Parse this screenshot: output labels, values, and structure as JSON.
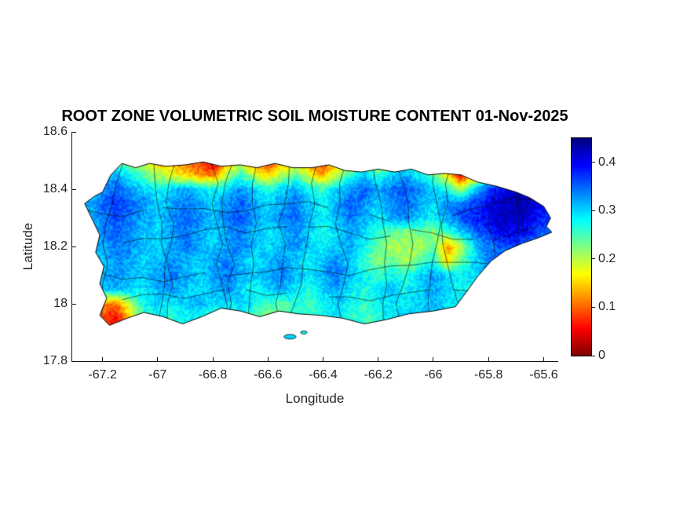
{
  "figure": {
    "title": "ROOT ZONE VOLUMETRIC SOIL MOISTURE CONTENT 01-Nov-2025",
    "xlabel": "Longitude",
    "ylabel": "Latitude",
    "background": "#ffffff",
    "text_color": "#262626"
  },
  "axes": {
    "xlim": [
      -67.31,
      -65.55
    ],
    "ylim": [
      17.8,
      18.6
    ],
    "x_ticks": {
      "values": [
        -67.2,
        -67,
        -66.8,
        -66.6,
        -66.4,
        -66.2,
        -66,
        -65.8,
        -65.6
      ],
      "labels": [
        "-67.2",
        "-67",
        "-66.8",
        "-66.6",
        "-66.4",
        "-66.2",
        "-66",
        "-65.8",
        "-65.6"
      ]
    },
    "y_ticks": {
      "values": [
        17.8,
        18,
        18.2,
        18.4,
        18.6
      ],
      "labels": [
        "17.8",
        "18",
        "18.2",
        "18.4",
        "18.6"
      ]
    }
  },
  "colorbar": {
    "min": 0,
    "max": 0.45,
    "colormap": "jet reversed (red = dry, dark blue = wet)",
    "ticks": {
      "values": [
        0,
        0.1,
        0.2,
        0.3,
        0.4
      ],
      "labels": [
        "0",
        "0.1",
        "0.2",
        "0.3",
        "0.4"
      ]
    }
  },
  "chart_data": {
    "type": "heatmap",
    "region": "Puerto Rico",
    "quantity": "Root zone volumetric soil moisture content",
    "date": "01-Nov-2025",
    "value_range": [
      0,
      0.45
    ],
    "grid": {
      "lon_start": -67.25,
      "lon_step": 0.05,
      "lat_start": 18.5,
      "lat_step": -0.05,
      "values": [
        [
          null,
          null,
          0.25,
          0.2,
          0.18,
          0.15,
          0.12,
          0.1,
          0.08,
          0.05,
          0.12,
          0.16,
          0.1,
          0.07,
          0.12,
          0.16,
          0.1,
          0.07,
          0.14,
          0.18,
          0.2,
          0.17,
          0.22,
          0.26,
          0.22,
          0.18,
          null,
          null,
          null,
          null,
          null,
          null,
          null,
          null,
          null
        ],
        [
          null,
          0.3,
          0.32,
          0.28,
          0.24,
          0.2,
          0.18,
          0.15,
          0.12,
          0.1,
          0.2,
          0.26,
          0.2,
          0.14,
          0.2,
          0.24,
          0.18,
          0.13,
          0.2,
          0.26,
          0.3,
          0.26,
          0.3,
          0.32,
          0.28,
          0.24,
          0.16,
          0.05,
          0.14,
          0.26,
          0.32,
          0.35,
          null,
          null,
          null
        ],
        [
          0.3,
          0.33,
          0.35,
          0.32,
          0.3,
          0.28,
          0.3,
          0.32,
          0.3,
          0.28,
          0.3,
          0.33,
          0.3,
          0.27,
          0.3,
          0.32,
          0.28,
          0.26,
          0.3,
          0.33,
          0.35,
          0.32,
          0.34,
          0.36,
          0.33,
          0.3,
          0.28,
          0.2,
          0.3,
          0.36,
          0.4,
          0.42,
          0.4,
          0.36,
          null
        ],
        [
          0.32,
          0.35,
          0.37,
          0.35,
          0.33,
          0.3,
          0.32,
          0.34,
          0.32,
          0.3,
          0.33,
          0.35,
          0.32,
          0.3,
          0.32,
          0.34,
          0.3,
          0.28,
          0.32,
          0.35,
          0.33,
          0.3,
          0.33,
          0.35,
          0.32,
          0.3,
          0.33,
          0.35,
          0.37,
          0.4,
          0.42,
          0.43,
          0.42,
          0.4,
          0.38
        ],
        [
          0.3,
          0.34,
          0.36,
          0.34,
          0.32,
          0.3,
          0.33,
          0.35,
          0.33,
          0.31,
          0.34,
          0.36,
          0.33,
          0.3,
          0.33,
          0.35,
          0.31,
          0.28,
          0.31,
          0.34,
          0.32,
          0.29,
          0.32,
          0.34,
          0.3,
          0.28,
          0.32,
          0.36,
          0.38,
          0.4,
          0.42,
          0.42,
          0.4,
          0.38,
          0.36
        ],
        [
          0.28,
          0.33,
          0.35,
          0.33,
          0.31,
          0.3,
          0.32,
          0.34,
          0.32,
          0.3,
          0.32,
          0.34,
          0.31,
          0.29,
          0.31,
          0.33,
          0.3,
          0.27,
          0.3,
          0.32,
          0.3,
          0.26,
          0.24,
          0.22,
          0.24,
          0.22,
          0.26,
          0.3,
          0.34,
          0.38,
          0.4,
          0.4,
          0.38,
          0.36,
          0.34
        ],
        [
          null,
          0.32,
          0.34,
          0.33,
          0.31,
          0.3,
          0.32,
          0.34,
          0.32,
          0.3,
          0.32,
          0.34,
          0.31,
          0.29,
          0.31,
          0.33,
          0.3,
          0.28,
          0.3,
          0.32,
          0.28,
          0.24,
          0.2,
          0.22,
          0.2,
          0.24,
          0.12,
          0.2,
          0.3,
          0.34,
          0.36,
          0.36,
          0.34,
          null,
          null
        ],
        [
          null,
          0.3,
          0.33,
          0.32,
          0.3,
          0.31,
          0.33,
          0.31,
          0.3,
          0.32,
          0.34,
          0.31,
          0.29,
          0.31,
          0.33,
          0.3,
          0.28,
          0.31,
          0.33,
          0.3,
          0.26,
          0.22,
          0.24,
          0.2,
          0.24,
          0.28,
          0.15,
          0.24,
          0.3,
          0.34,
          0.34,
          null,
          null,
          null,
          null
        ],
        [
          null,
          0.31,
          0.33,
          0.31,
          0.3,
          0.32,
          0.34,
          0.32,
          0.3,
          0.32,
          0.34,
          0.32,
          0.3,
          0.32,
          0.34,
          0.31,
          0.29,
          0.32,
          0.34,
          0.31,
          0.28,
          0.26,
          0.28,
          0.26,
          0.3,
          0.32,
          0.3,
          0.28,
          0.3,
          0.3,
          null,
          null,
          null,
          null,
          null
        ],
        [
          null,
          0.3,
          0.32,
          0.3,
          0.29,
          0.31,
          0.33,
          0.31,
          0.29,
          0.31,
          0.33,
          0.3,
          0.28,
          0.3,
          0.32,
          0.29,
          0.27,
          0.3,
          0.32,
          0.29,
          0.27,
          0.29,
          0.31,
          0.28,
          0.3,
          0.32,
          0.3,
          0.28,
          null,
          null,
          null,
          null,
          null,
          null,
          null
        ],
        [
          null,
          0.12,
          0.1,
          0.2,
          0.28,
          0.3,
          0.28,
          0.3,
          0.32,
          0.3,
          0.28,
          0.3,
          0.28,
          0.26,
          0.24,
          0.27,
          0.25,
          0.28,
          0.3,
          0.28,
          0.26,
          0.28,
          0.3,
          0.28,
          0.3,
          0.31,
          0.29,
          null,
          null,
          null,
          null,
          null,
          null,
          null,
          null
        ],
        [
          null,
          0.08,
          0.06,
          0.15,
          0.25,
          0.28,
          0.26,
          0.28,
          0.27,
          0.25,
          0.28,
          0.26,
          0.24,
          0.2,
          0.24,
          0.26,
          0.25,
          0.27,
          0.29,
          0.27,
          0.25,
          0.27,
          0.29,
          0.3,
          null,
          null,
          null,
          null,
          null,
          null,
          null,
          null,
          null,
          null,
          null
        ],
        [
          null,
          null,
          null,
          null,
          null,
          null,
          null,
          null,
          null,
          null,
          null,
          null,
          null,
          null,
          null,
          null,
          null,
          null,
          null,
          null,
          null,
          null,
          null,
          null,
          null,
          null,
          null,
          null,
          null,
          null,
          null,
          null,
          null,
          null,
          null
        ]
      ]
    },
    "island_outline": [
      [
        -67.19,
        18.41
      ],
      [
        -67.17,
        18.45
      ],
      [
        -67.13,
        18.49
      ],
      [
        -67.08,
        18.475
      ],
      [
        -67.03,
        18.49
      ],
      [
        -66.97,
        18.48
      ],
      [
        -66.9,
        18.485
      ],
      [
        -66.835,
        18.495
      ],
      [
        -66.77,
        18.48
      ],
      [
        -66.7,
        18.485
      ],
      [
        -66.64,
        18.475
      ],
      [
        -66.575,
        18.49
      ],
      [
        -66.51,
        18.475
      ],
      [
        -66.44,
        18.475
      ],
      [
        -66.38,
        18.485
      ],
      [
        -66.32,
        18.465
      ],
      [
        -66.26,
        18.46
      ],
      [
        -66.2,
        18.47
      ],
      [
        -66.14,
        18.46
      ],
      [
        -66.08,
        18.47
      ],
      [
        -66.02,
        18.45
      ],
      [
        -65.96,
        18.455
      ],
      [
        -65.9,
        18.45
      ],
      [
        -65.84,
        18.425
      ],
      [
        -65.77,
        18.41
      ],
      [
        -65.7,
        18.39
      ],
      [
        -65.65,
        18.37
      ],
      [
        -65.6,
        18.34
      ],
      [
        -65.575,
        18.3
      ],
      [
        -65.59,
        18.27
      ],
      [
        -65.57,
        18.25
      ],
      [
        -65.62,
        18.23
      ],
      [
        -65.68,
        18.21
      ],
      [
        -65.74,
        18.185
      ],
      [
        -65.79,
        18.15
      ],
      [
        -65.84,
        18.095
      ],
      [
        -65.885,
        18.035
      ],
      [
        -65.92,
        17.99
      ],
      [
        -66.0,
        17.975
      ],
      [
        -66.09,
        17.965
      ],
      [
        -66.17,
        17.945
      ],
      [
        -66.25,
        17.93
      ],
      [
        -66.33,
        17.95
      ],
      [
        -66.41,
        17.96
      ],
      [
        -66.49,
        17.965
      ],
      [
        -66.56,
        17.975
      ],
      [
        -66.63,
        17.955
      ],
      [
        -66.7,
        17.975
      ],
      [
        -66.77,
        17.985
      ],
      [
        -66.84,
        17.955
      ],
      [
        -66.91,
        17.93
      ],
      [
        -66.98,
        17.955
      ],
      [
        -67.05,
        17.97
      ],
      [
        -67.11,
        17.95
      ],
      [
        -67.175,
        17.925
      ],
      [
        -67.21,
        17.96
      ],
      [
        -67.185,
        18.02
      ],
      [
        -67.21,
        18.07
      ],
      [
        -67.195,
        18.13
      ],
      [
        -67.225,
        18.18
      ],
      [
        -67.21,
        18.24
      ],
      [
        -67.235,
        18.29
      ],
      [
        -67.265,
        18.35
      ],
      [
        -67.23,
        18.375
      ],
      [
        -67.2,
        18.39
      ]
    ],
    "islets": [
      {
        "lon": -66.52,
        "lat": 17.885,
        "rx": 0.022,
        "ry": 0.008,
        "value": 0.3
      },
      {
        "lon": -66.47,
        "lat": 17.9,
        "rx": 0.012,
        "ry": 0.005,
        "value": 0.28
      }
    ]
  }
}
